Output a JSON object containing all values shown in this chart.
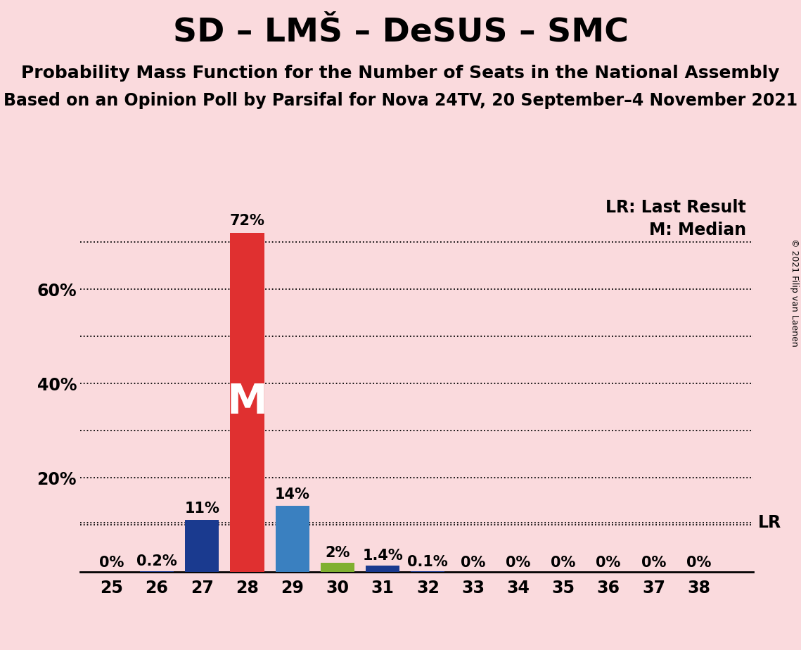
{
  "title": "SD – LMŠ – DeSUS – SMC",
  "subtitle1": "Probability Mass Function for the Number of Seats in the National Assembly",
  "subtitle2": "Based on an Opinion Poll by Parsifal for Nova 24TV, 20 September–4 November 2021",
  "copyright": "© 2021 Filip van Laenen",
  "seats": [
    25,
    26,
    27,
    28,
    29,
    30,
    31,
    32,
    33,
    34,
    35,
    36,
    37,
    38
  ],
  "values": [
    0.0,
    0.2,
    11.0,
    72.0,
    14.0,
    2.0,
    1.4,
    0.1,
    0.0,
    0.0,
    0.0,
    0.0,
    0.0,
    0.0
  ],
  "labels": [
    "0%",
    "0.2%",
    "11%",
    "72%",
    "14%",
    "2%",
    "1.4%",
    "0.1%",
    "0%",
    "0%",
    "0%",
    "0%",
    "0%",
    "0%"
  ],
  "bar_colors": [
    "#1a3a8f",
    "#1a3a8f",
    "#1a3a8f",
    "#e03030",
    "#3a80c0",
    "#80b030",
    "#1a3a8f",
    "#1a3a8f",
    "#1a3a8f",
    "#1a3a8f",
    "#1a3a8f",
    "#1a3a8f",
    "#1a3a8f",
    "#1a3a8f"
  ],
  "background_color": "#fadadd",
  "median_seat": 28,
  "median_label": "M",
  "lr_value": 10.5,
  "lr_label": "LR",
  "lr_label_full": "LR: Last Result",
  "median_label_full": "M: Median",
  "ylim": [
    0,
    80
  ],
  "grid_ticks": [
    10,
    20,
    30,
    40,
    50,
    60,
    70
  ],
  "ytick_positions": [
    20,
    40,
    60
  ],
  "ytick_labels": [
    "20%",
    "40%",
    "60%"
  ],
  "title_fontsize": 34,
  "subtitle1_fontsize": 18,
  "subtitle2_fontsize": 17,
  "label_fontsize": 15,
  "tick_fontsize": 17,
  "legend_fontsize": 17,
  "copyright_fontsize": 9
}
